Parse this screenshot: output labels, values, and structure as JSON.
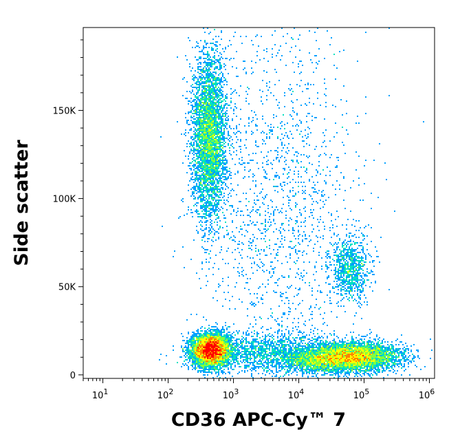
{
  "chart_data": {
    "type": "scatter",
    "subtype": "flow-cytometry-density-dot-plot",
    "title": "",
    "xlabel": "CD36 APC-Cy™ 7",
    "ylabel": "Side scatter",
    "x_scale": "log",
    "xlim": [
      5,
      1200000
    ],
    "ylim": [
      -2000,
      197000
    ],
    "x_ticks": [
      {
        "value": 10,
        "base": "10",
        "exp": "1"
      },
      {
        "value": 100,
        "base": "10",
        "exp": "2"
      },
      {
        "value": 1000,
        "base": "10",
        "exp": "3"
      },
      {
        "value": 10000,
        "base": "10",
        "exp": "4"
      },
      {
        "value": 100000,
        "base": "10",
        "exp": "5"
      },
      {
        "value": 1000000,
        "base": "10",
        "exp": "6"
      }
    ],
    "y_ticks": [
      {
        "value": 0,
        "label": "0"
      },
      {
        "value": 50000,
        "label": "50K"
      },
      {
        "value": 100000,
        "label": "100K"
      },
      {
        "value": 150000,
        "label": "150K"
      }
    ],
    "grid": false,
    "legend": "none",
    "color_scale": [
      "#0000cc",
      "#00a0ff",
      "#00e0c0",
      "#80ff40",
      "#ffff00",
      "#ff8000",
      "#ff0000"
    ],
    "populations": [
      {
        "x_center": 450,
        "y_center": 14000,
        "x_spread_decades": 0.14,
        "y_spread": 4500,
        "density": "very high",
        "count": 6000
      },
      {
        "x_center": 430,
        "y_center": 135000,
        "x_spread_decades": 0.13,
        "y_spread": 23000,
        "density": "medium",
        "count": 4500
      },
      {
        "x_center": 60000,
        "y_center": 60000,
        "x_spread_decades": 0.15,
        "y_spread": 9000,
        "density": "low",
        "count": 900
      },
      {
        "x_center": 70000,
        "y_center": 10500,
        "x_spread_decades": 0.35,
        "y_spread": 4000,
        "density": "high",
        "count": 5000
      },
      {
        "x_center": 20000,
        "y_center": 8000,
        "x_spread_decades": 0.3,
        "y_spread": 3500,
        "density": "medium",
        "count": 1800
      },
      {
        "x_center": 3000,
        "y_center": 13000,
        "x_spread_decades": 0.5,
        "y_spread": 6000,
        "density": "low",
        "count": 1500
      },
      {
        "x_center": 5000,
        "y_center": 100000,
        "x_spread_decades": 0.6,
        "y_spread": 50000,
        "density": "very low",
        "count": 1600
      }
    ]
  }
}
